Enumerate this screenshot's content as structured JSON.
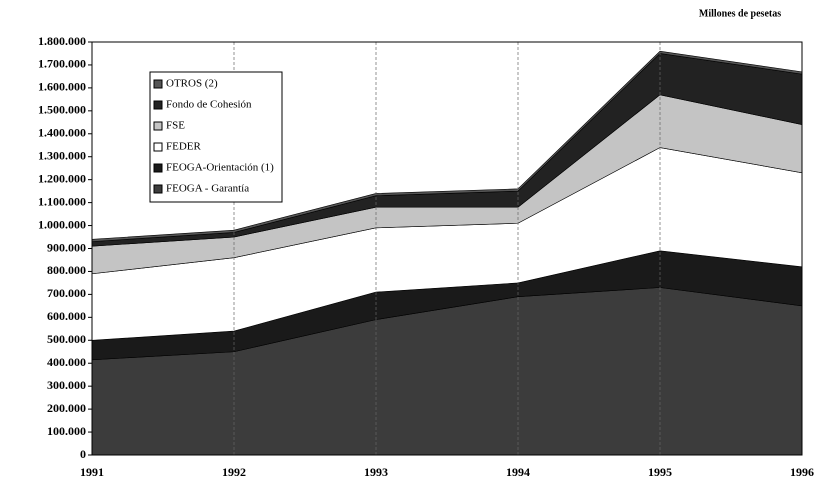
{
  "chart_data": {
    "type": "stacked_area",
    "subtitle": "Millones de pesetas",
    "categories": [
      "1991",
      "1992",
      "1993",
      "1994",
      "1995",
      "1996"
    ],
    "series": [
      {
        "name": "FEOGA - Garantía",
        "color": "#3c3c3c",
        "values": [
          415000,
          450000,
          590000,
          690000,
          730000,
          650000
        ]
      },
      {
        "name": "FEOGA-Orientación (1)",
        "color": "#1a1a1a",
        "values": [
          85000,
          90000,
          120000,
          60000,
          160000,
          170000
        ]
      },
      {
        "name": "FEDER",
        "color": "#ffffff",
        "values": [
          290000,
          320000,
          280000,
          260000,
          450000,
          410000
        ]
      },
      {
        "name": "FSE",
        "color": "#c4c4c4",
        "values": [
          120000,
          90000,
          90000,
          70000,
          230000,
          210000
        ]
      },
      {
        "name": "Fondo de Cohesión",
        "color": "#222222",
        "values": [
          20000,
          20000,
          50000,
          70000,
          180000,
          220000
        ]
      },
      {
        "name": "OTROS (2)",
        "color": "#555555",
        "values": [
          10000,
          10000,
          10000,
          10000,
          10000,
          10000
        ]
      }
    ],
    "ylim": [
      0,
      1800000
    ],
    "yticks": [
      0,
      {
        "value": 100000,
        "label": "100.000"
      },
      {
        "value": 200000,
        "label": "200.000"
      },
      {
        "value": 300000,
        "label": "300.000"
      },
      {
        "value": 400000,
        "label": "400.000"
      },
      {
        "value": 500000,
        "label": "500.000"
      },
      {
        "value": 600000,
        "label": "600.000"
      },
      {
        "value": 700000,
        "label": "700.000"
      },
      {
        "value": 800000,
        "label": "800.000"
      },
      {
        "value": 900000,
        "label": "900.000"
      },
      {
        "value": 1000000,
        "label": "1.000.000"
      },
      {
        "value": 1100000,
        "label": "1.100.000"
      },
      {
        "value": 1200000,
        "label": "1.200.000"
      },
      {
        "value": 1300000,
        "label": "1.300.000"
      },
      {
        "value": 1400000,
        "label": "1.400.000"
      },
      {
        "value": 1500000,
        "label": "1.500.000"
      },
      {
        "value": 1600000,
        "label": "1.600.000"
      },
      {
        "value": 1700000,
        "label": "1.700.000"
      },
      {
        "value": 1800000,
        "label": "1.800.000"
      }
    ],
    "grid": true
  }
}
